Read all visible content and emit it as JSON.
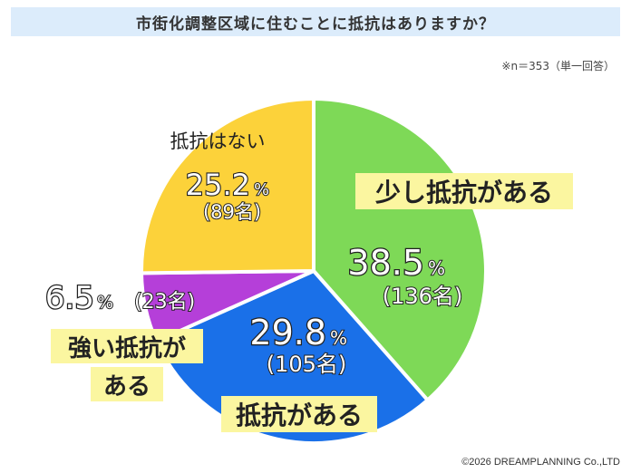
{
  "title": "市街化調整区域に住むことに抵抗はありますか？",
  "note": "※n＝353（単一回答）",
  "copyright": "©2026 DREAMPLANNING Co.,LTD",
  "chart_data": {
    "type": "pie",
    "start_angle_deg": 0,
    "direction": "clockwise",
    "slices": [
      {
        "label": "少し抵抗がある",
        "percent_text": "38.5",
        "percent_value": 38.5,
        "count_text": "(136名)",
        "color": "#7ed957"
      },
      {
        "label": "抵抗がある",
        "percent_text": "29.8",
        "percent_value": 29.8,
        "count_text": "(105名)",
        "color": "#1a70e8"
      },
      {
        "label": "強い抵抗がある",
        "percent_text": "6.5",
        "percent_value": 6.5,
        "count_text": "(23名)",
        "color": "#b53fd9"
      },
      {
        "label": "抵抗はない",
        "percent_text": "25.2",
        "percent_value": 25.2,
        "count_text": "(89名)",
        "color": "#fcd23a"
      }
    ],
    "percent_unit": "%"
  }
}
